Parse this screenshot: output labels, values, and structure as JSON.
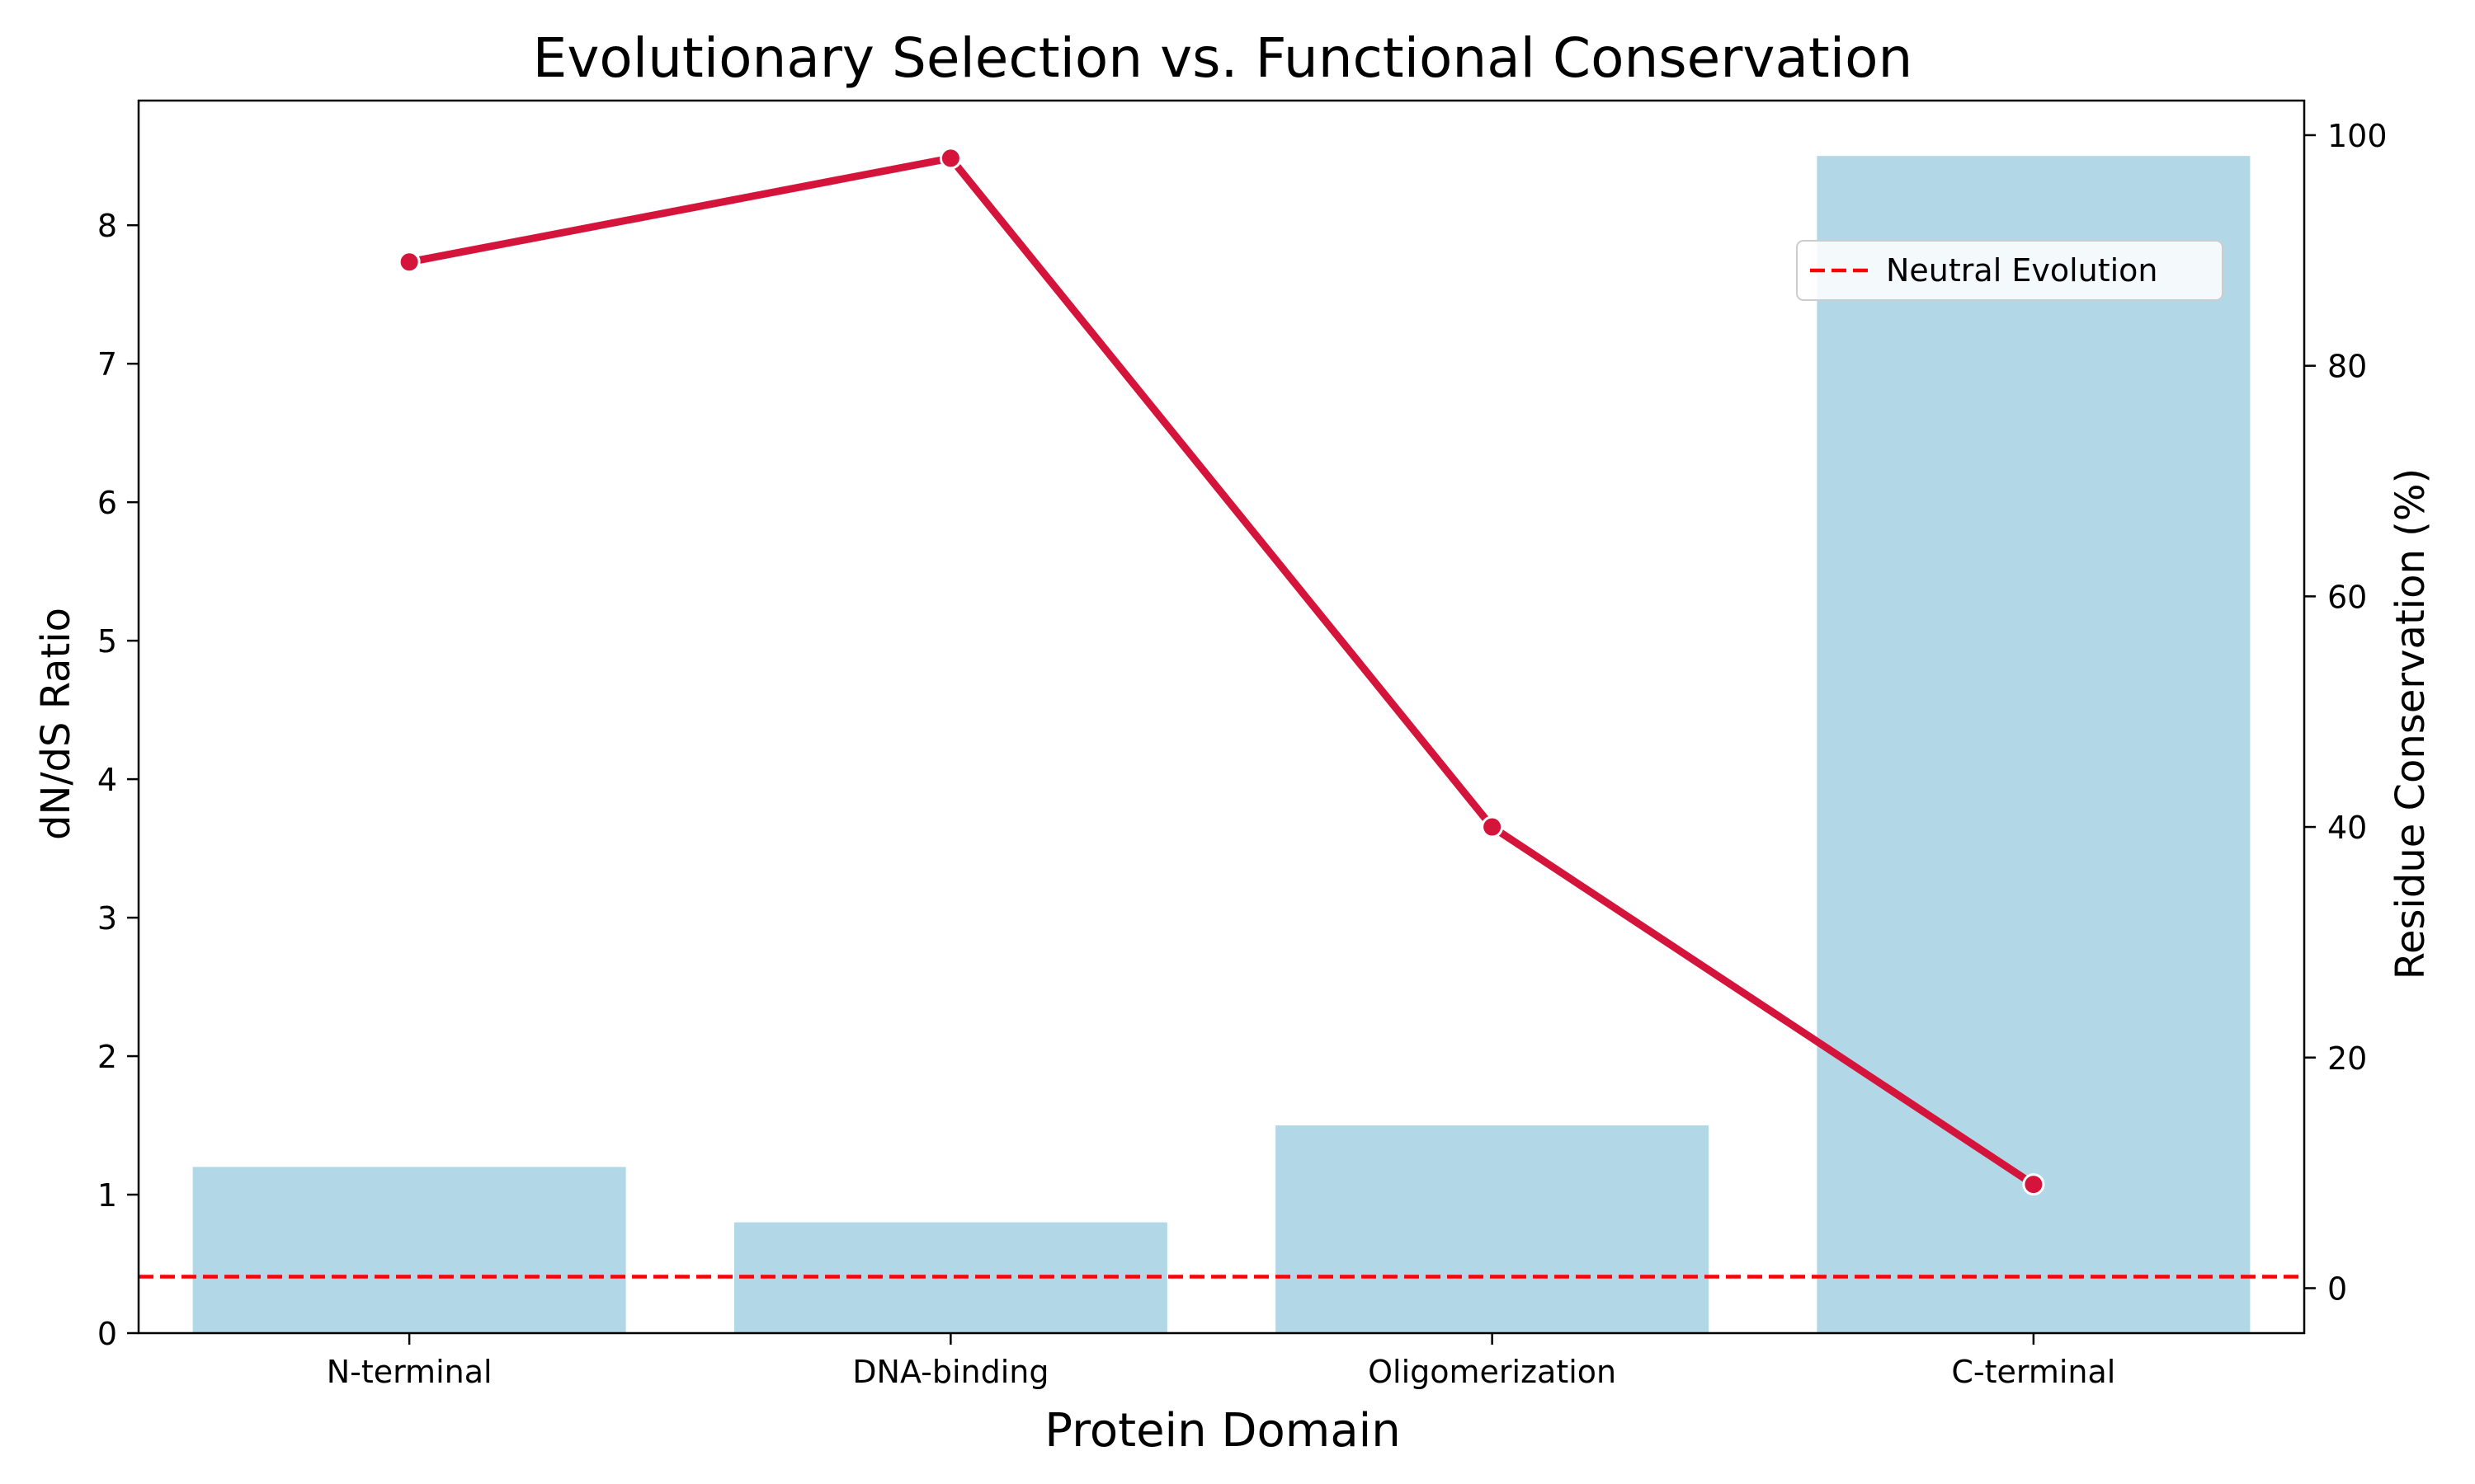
{
  "chart_data": {
    "type": "bar",
    "title": "Evolutionary Selection vs. Functional Conservation",
    "xlabel": "Protein Domain",
    "ylabel": "dN/dS Ratio",
    "y2label": "Residue Conservation (%)",
    "categories": [
      "N-terminal",
      "DNA-binding",
      "Oligomerization",
      "C-terminal"
    ],
    "series": [
      {
        "kind": "bar",
        "axis": "left",
        "values": [
          1.2,
          0.8,
          1.5,
          8.5
        ]
      },
      {
        "kind": "line",
        "axis": "right",
        "values": [
          89,
          98,
          40,
          9
        ]
      }
    ],
    "reference_line": {
      "label": "Neutral Evolution",
      "value": 1,
      "axis": "right",
      "style": "dashed"
    },
    "ylim": [
      0,
      8.9
    ],
    "y2lim": [
      -3.9,
      103
    ],
    "yticks": [
      0,
      1,
      2,
      3,
      4,
      5,
      6,
      7,
      8
    ],
    "y2ticks": [
      0,
      20,
      40,
      60,
      80,
      100
    ],
    "grid": false,
    "legend": "top-right",
    "colors": {
      "bar": "#b2d8e8",
      "line": "#d5143c",
      "reference": "#ff0000",
      "axis": "#000000"
    }
  }
}
